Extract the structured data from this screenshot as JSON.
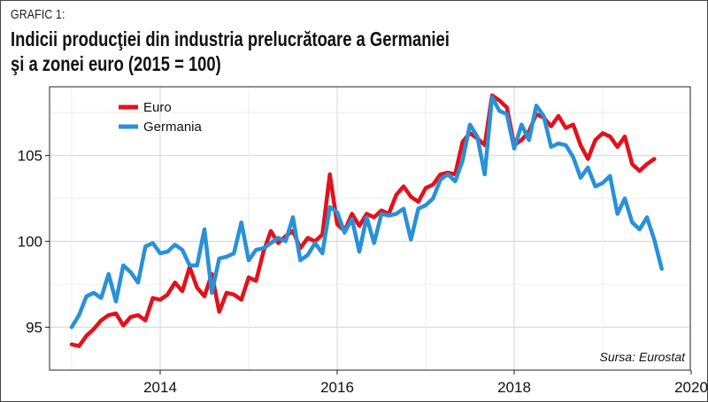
{
  "figure": {
    "kicker": "GRAFIC 1:",
    "title_line1": "Indicii producţiei din industria prelucrătoare a Germaniei",
    "title_line2": "şi a zonei euro (2015 = 100)",
    "source": "Sursa: Eurostat"
  },
  "chart_data": {
    "type": "line",
    "title": "Indicii producţiei din industria prelucrătoare a Germaniei şi a zonei euro (2015 = 100)",
    "xlabel": "",
    "ylabel": "",
    "x_start": "2013-01",
    "x_frequency": "monthly",
    "xlim": [
      2012.75,
      2019.99
    ],
    "ylim": [
      92.5,
      109
    ],
    "x_ticks": [
      2014,
      2016,
      2018,
      2020
    ],
    "y_ticks": [
      95,
      100,
      105
    ],
    "grid": true,
    "legend_position": "top-left",
    "series": [
      {
        "name": "Euro",
        "color": "#e3111b",
        "values": [
          94.0,
          93.9,
          94.5,
          94.9,
          95.4,
          95.7,
          95.8,
          95.1,
          95.6,
          95.7,
          95.4,
          96.7,
          96.6,
          96.9,
          97.6,
          97.1,
          98.5,
          97.3,
          96.8,
          98.1,
          95.9,
          97.0,
          96.9,
          96.6,
          97.9,
          97.7,
          99.4,
          100.6,
          99.9,
          100.3,
          100.6,
          99.6,
          100.2,
          100.0,
          100.4,
          103.9,
          101.0,
          100.6,
          101.6,
          100.9,
          101.6,
          101.4,
          101.8,
          101.6,
          102.7,
          103.2,
          102.6,
          102.3,
          103.1,
          103.3,
          103.9,
          104.0,
          103.9,
          105.8,
          106.3,
          106.0,
          105.6,
          108.5,
          108.2,
          107.8,
          105.6,
          105.9,
          106.4,
          107.4,
          107.2,
          106.7,
          107.3,
          106.6,
          106.8,
          105.6,
          104.8,
          105.9,
          106.3,
          106.1,
          105.5,
          106.1,
          104.5,
          104.1,
          104.5,
          104.8
        ]
      },
      {
        "name": "Germania",
        "color": "#2891d8",
        "values": [
          95.0,
          95.7,
          96.8,
          97.0,
          96.7,
          98.1,
          96.5,
          98.6,
          98.2,
          97.6,
          99.7,
          99.9,
          99.3,
          99.4,
          99.8,
          99.5,
          98.6,
          98.6,
          100.7,
          97.0,
          99.0,
          99.1,
          99.3,
          101.1,
          98.9,
          99.5,
          99.6,
          99.9,
          100.2,
          100.0,
          101.4,
          98.9,
          99.2,
          99.9,
          99.3,
          102.0,
          101.7,
          100.5,
          101.3,
          99.4,
          101.4,
          99.9,
          101.6,
          101.5,
          101.6,
          101.9,
          100.1,
          101.9,
          102.1,
          102.5,
          103.6,
          103.9,
          103.5,
          104.7,
          106.8,
          106.1,
          103.9,
          108.4,
          107.6,
          107.4,
          105.4,
          106.8,
          105.9,
          107.9,
          107.3,
          105.5,
          105.7,
          105.6,
          104.9,
          103.7,
          104.3,
          103.2,
          103.4,
          103.8,
          101.6,
          102.5,
          101.1,
          100.7,
          101.4,
          100.1,
          98.4
        ]
      }
    ]
  }
}
